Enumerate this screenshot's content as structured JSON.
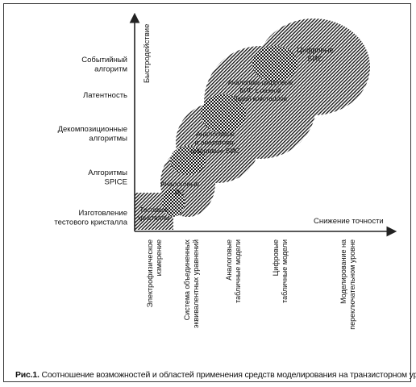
{
  "y_axis": {
    "title": "Быстродействие",
    "labels": [
      [
        "Событийный",
        "алгоритм"
      ],
      [
        "Латентность"
      ],
      [
        "Декомпозиционные",
        "алгоритмы"
      ],
      [
        "Алгоритмы",
        "SPICE"
      ],
      [
        "Изготовление",
        "тестового кристалла"
      ]
    ]
  },
  "x_axis": {
    "title": "Снижение точности",
    "labels": [
      [
        "Электрофизическое",
        "измерение"
      ],
      [
        "Система объединенных",
        "эквивалентных уравнений"
      ],
      [
        "Аналоговые",
        "табличные модели"
      ],
      [
        "Цифровые",
        "табличные модели"
      ],
      [
        "Моделирование на",
        "переключательном уровне"
      ]
    ]
  },
  "regions": [
    [
      "Тестовые",
      "кристаллы"
    ],
    [
      "Аналоговые",
      "ИС"
    ],
    [
      "Аналоговые",
      "и аналогово-",
      "цифровые БИС"
    ],
    [
      "Аналогово-цифровые",
      "БИС с разной",
      "базой кристаллов"
    ],
    [
      "Цифровые",
      "БИС"
    ]
  ],
  "caption": {
    "label": "Рис.1.",
    "text": " Соотношение возможностей и областей применения средств моделирования на транзисторном уровне"
  }
}
